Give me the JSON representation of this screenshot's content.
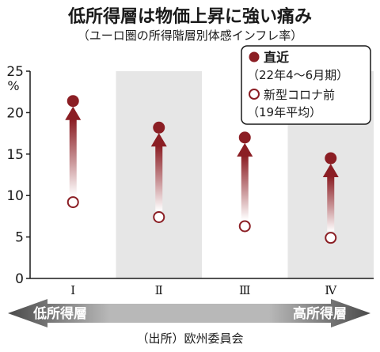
{
  "chart_data": {
    "type": "scatter",
    "title": "低所得層は物価上昇に強い痛み",
    "subtitle": "（ユーロ圏の所得階層別体感インフレ率）",
    "y_unit": "%",
    "ylim": [
      0,
      25
    ],
    "y_ticks": [
      "0",
      "5",
      "10",
      "15",
      "20",
      "25"
    ],
    "categories": [
      "Ⅰ",
      "Ⅱ",
      "Ⅲ",
      "Ⅳ"
    ],
    "series": [
      {
        "name": "直近",
        "name_detail": "（22年4～6月期）",
        "values": [
          21.4,
          18.2,
          17.0,
          14.5
        ]
      },
      {
        "name": "新型コロナ前",
        "name_detail": "（19年平均）",
        "values": [
          9.2,
          7.4,
          6.3,
          4.9
        ]
      }
    ],
    "colors": {
      "marker": "#8b1e24",
      "arrow_dark": "#8b1e24",
      "band": "#e6e6e6",
      "bar_dark": "#5a5a5a"
    },
    "legend_position": "top-right",
    "grid": false,
    "x_arrow": {
      "left_label": "低所得層",
      "right_label": "高所得層"
    },
    "source": "（出所）欧州委員会"
  }
}
